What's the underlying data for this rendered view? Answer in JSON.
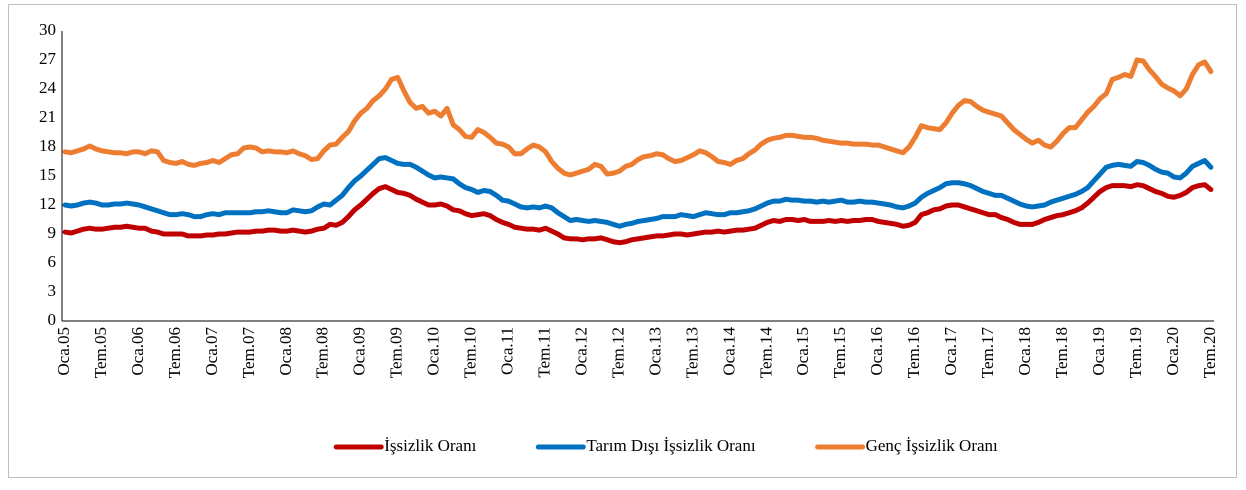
{
  "chart_data": {
    "type": "line",
    "categories": [
      "Oca.05",
      null,
      null,
      null,
      null,
      null,
      "Tem.05",
      null,
      null,
      null,
      null,
      null,
      "Oca.06",
      null,
      null,
      null,
      null,
      null,
      "Tem.06",
      null,
      null,
      null,
      null,
      null,
      "Oca.07",
      null,
      null,
      null,
      null,
      null,
      "Tem.07",
      null,
      null,
      null,
      null,
      null,
      "Oca.08",
      null,
      null,
      null,
      null,
      null,
      "Tem.08",
      null,
      null,
      null,
      null,
      null,
      "Oca.09",
      null,
      null,
      null,
      null,
      null,
      "Tem.09",
      null,
      null,
      null,
      null,
      null,
      "Oca.10",
      null,
      null,
      null,
      null,
      null,
      "Tem.10",
      null,
      null,
      null,
      null,
      null,
      "Oca.11",
      null,
      null,
      null,
      null,
      null,
      "Tem.11",
      null,
      null,
      null,
      null,
      null,
      "Oca.12",
      null,
      null,
      null,
      null,
      null,
      "Tem.12",
      null,
      null,
      null,
      null,
      null,
      "Oca.13",
      null,
      null,
      null,
      null,
      null,
      "Tem.13",
      null,
      null,
      null,
      null,
      null,
      "Oca.14",
      null,
      null,
      null,
      null,
      null,
      "Tem.14",
      null,
      null,
      null,
      null,
      null,
      "Oca.15",
      null,
      null,
      null,
      null,
      null,
      "Tem.15",
      null,
      null,
      null,
      null,
      null,
      "Oca.16",
      null,
      null,
      null,
      null,
      null,
      "Tem.16",
      null,
      null,
      null,
      null,
      null,
      "Oca.17",
      null,
      null,
      null,
      null,
      null,
      "Tem.17",
      null,
      null,
      null,
      null,
      null,
      "Oca.18",
      null,
      null,
      null,
      null,
      null,
      "Tem.18",
      null,
      null,
      null,
      null,
      null,
      "Oca.19",
      null,
      null,
      null,
      null,
      null,
      "Tem.19",
      null,
      null,
      null,
      null,
      null,
      "Oca.20",
      null,
      null,
      null,
      null,
      null,
      "Tem.20"
    ],
    "series": [
      {
        "name": "İşsizlik Oranı",
        "color": "#c00000",
        "values": [
          9.2,
          9.1,
          9.3,
          9.5,
          9.6,
          9.5,
          9.5,
          9.6,
          9.7,
          9.7,
          9.8,
          9.7,
          9.6,
          9.6,
          9.3,
          9.2,
          9.0,
          9.0,
          9.0,
          9.0,
          8.8,
          8.8,
          8.8,
          8.9,
          8.9,
          9.0,
          9.0,
          9.1,
          9.2,
          9.2,
          9.2,
          9.3,
          9.3,
          9.4,
          9.4,
          9.3,
          9.3,
          9.4,
          9.3,
          9.2,
          9.3,
          9.5,
          9.6,
          10.0,
          9.9,
          10.2,
          10.8,
          11.5,
          12.0,
          12.6,
          13.2,
          13.7,
          13.9,
          13.6,
          13.3,
          13.2,
          13.0,
          12.6,
          12.3,
          12.0,
          12.0,
          12.1,
          11.9,
          11.5,
          11.4,
          11.1,
          10.9,
          11.0,
          11.1,
          10.9,
          10.5,
          10.2,
          10.0,
          9.7,
          9.6,
          9.5,
          9.5,
          9.4,
          9.6,
          9.3,
          9.0,
          8.6,
          8.5,
          8.5,
          8.4,
          8.5,
          8.5,
          8.6,
          8.4,
          8.2,
          8.1,
          8.2,
          8.4,
          8.5,
          8.6,
          8.7,
          8.8,
          8.8,
          8.9,
          9.0,
          9.0,
          8.9,
          9.0,
          9.1,
          9.2,
          9.2,
          9.3,
          9.2,
          9.3,
          9.4,
          9.4,
          9.5,
          9.6,
          9.9,
          10.2,
          10.4,
          10.3,
          10.5,
          10.5,
          10.4,
          10.5,
          10.3,
          10.3,
          10.3,
          10.4,
          10.3,
          10.4,
          10.3,
          10.4,
          10.4,
          10.5,
          10.5,
          10.3,
          10.2,
          10.1,
          10.0,
          9.8,
          9.9,
          10.2,
          11.0,
          11.2,
          11.5,
          11.6,
          11.9,
          12.0,
          12.0,
          11.8,
          11.6,
          11.4,
          11.2,
          11.0,
          11.0,
          10.7,
          10.5,
          10.2,
          10.0,
          10.0,
          10.0,
          10.2,
          10.5,
          10.7,
          10.9,
          11.0,
          11.2,
          11.4,
          11.7,
          12.2,
          12.8,
          13.4,
          13.8,
          14.0,
          14.0,
          14.0,
          13.9,
          14.1,
          14.0,
          13.7,
          13.4,
          13.2,
          12.9,
          12.8,
          13.0,
          13.3,
          13.8,
          14.0,
          14.1,
          13.6
        ]
      },
      {
        "name": "Tarım Dışı İşsizlik Oranı",
        "color": "#0070c0",
        "values": [
          12.0,
          11.9,
          12.0,
          12.2,
          12.3,
          12.2,
          12.0,
          12.0,
          12.1,
          12.1,
          12.2,
          12.1,
          12.0,
          11.8,
          11.6,
          11.4,
          11.2,
          11.0,
          11.0,
          11.1,
          11.0,
          10.8,
          10.8,
          11.0,
          11.1,
          11.0,
          11.2,
          11.2,
          11.2,
          11.2,
          11.2,
          11.3,
          11.3,
          11.4,
          11.3,
          11.2,
          11.2,
          11.5,
          11.4,
          11.3,
          11.4,
          11.8,
          12.1,
          12.0,
          12.5,
          13.0,
          13.8,
          14.5,
          15.0,
          15.6,
          16.2,
          16.8,
          16.9,
          16.6,
          16.3,
          16.2,
          16.2,
          15.9,
          15.5,
          15.1,
          14.8,
          14.9,
          14.8,
          14.7,
          14.2,
          13.8,
          13.6,
          13.3,
          13.5,
          13.4,
          13.0,
          12.5,
          12.4,
          12.1,
          11.8,
          11.7,
          11.8,
          11.7,
          11.9,
          11.7,
          11.2,
          10.8,
          10.4,
          10.5,
          10.4,
          10.3,
          10.4,
          10.3,
          10.2,
          10.0,
          9.8,
          10.0,
          10.1,
          10.3,
          10.4,
          10.5,
          10.6,
          10.8,
          10.8,
          10.8,
          11.0,
          10.9,
          10.8,
          11.0,
          11.2,
          11.1,
          11.0,
          11.0,
          11.2,
          11.2,
          11.3,
          11.4,
          11.6,
          11.9,
          12.2,
          12.4,
          12.4,
          12.6,
          12.5,
          12.5,
          12.4,
          12.4,
          12.3,
          12.4,
          12.3,
          12.4,
          12.5,
          12.3,
          12.3,
          12.4,
          12.3,
          12.3,
          12.2,
          12.1,
          12.0,
          11.8,
          11.7,
          11.9,
          12.2,
          12.8,
          13.2,
          13.5,
          13.8,
          14.2,
          14.3,
          14.3,
          14.2,
          14.0,
          13.7,
          13.4,
          13.2,
          13.0,
          13.0,
          12.7,
          12.4,
          12.1,
          11.9,
          11.8,
          11.9,
          12.0,
          12.3,
          12.5,
          12.7,
          12.9,
          13.1,
          13.4,
          13.8,
          14.5,
          15.2,
          15.9,
          16.1,
          16.2,
          16.1,
          16.0,
          16.5,
          16.4,
          16.1,
          15.7,
          15.4,
          15.3,
          14.9,
          14.8,
          15.3,
          16.0,
          16.3,
          16.6,
          15.9
        ]
      },
      {
        "name": "Genç İşsizlik Oranı",
        "color": "#ed7d31",
        "values": [
          17.5,
          17.4,
          17.6,
          17.8,
          18.1,
          17.8,
          17.6,
          17.5,
          17.4,
          17.4,
          17.3,
          17.5,
          17.5,
          17.3,
          17.6,
          17.5,
          16.6,
          16.4,
          16.3,
          16.5,
          16.2,
          16.1,
          16.3,
          16.4,
          16.6,
          16.4,
          16.8,
          17.2,
          17.3,
          17.9,
          18.0,
          17.9,
          17.5,
          17.6,
          17.5,
          17.5,
          17.4,
          17.6,
          17.3,
          17.1,
          16.7,
          16.8,
          17.6,
          18.2,
          18.3,
          19.0,
          19.6,
          20.7,
          21.5,
          22.0,
          22.8,
          23.3,
          24.0,
          25.0,
          25.2,
          23.8,
          22.6,
          22.0,
          22.2,
          21.5,
          21.7,
          21.2,
          22.0,
          20.3,
          19.8,
          19.1,
          19.0,
          19.8,
          19.5,
          19.0,
          18.4,
          18.3,
          18.0,
          17.3,
          17.3,
          17.8,
          18.2,
          18.0,
          17.5,
          16.5,
          15.8,
          15.3,
          15.1,
          15.3,
          15.5,
          15.7,
          16.2,
          16.0,
          15.2,
          15.3,
          15.5,
          16.0,
          16.2,
          16.7,
          17.0,
          17.1,
          17.3,
          17.2,
          16.8,
          16.5,
          16.6,
          16.9,
          17.2,
          17.6,
          17.4,
          17.0,
          16.5,
          16.4,
          16.2,
          16.6,
          16.8,
          17.3,
          17.7,
          18.3,
          18.7,
          18.9,
          19.0,
          19.2,
          19.2,
          19.1,
          19.0,
          19.0,
          18.9,
          18.7,
          18.6,
          18.5,
          18.4,
          18.4,
          18.3,
          18.3,
          18.3,
          18.2,
          18.2,
          18.0,
          17.8,
          17.6,
          17.4,
          18.0,
          19.0,
          20.2,
          20.0,
          19.9,
          19.8,
          20.5,
          21.5,
          22.3,
          22.8,
          22.7,
          22.2,
          21.8,
          21.6,
          21.4,
          21.2,
          20.5,
          19.8,
          19.3,
          18.8,
          18.4,
          18.7,
          18.2,
          18.0,
          18.6,
          19.4,
          20.0,
          20.0,
          20.8,
          21.6,
          22.2,
          23.0,
          23.5,
          25.0,
          25.2,
          25.5,
          25.3,
          27.0,
          26.9,
          26.0,
          25.3,
          24.5,
          24.1,
          23.8,
          23.3,
          24.0,
          25.5,
          26.5,
          26.8,
          25.8
        ]
      }
    ],
    "ylim": [
      0,
      30
    ],
    "yticks": [
      0,
      3,
      6,
      9,
      12,
      15,
      18,
      21,
      24,
      27,
      30
    ],
    "grid": false,
    "legend": "bottom"
  }
}
